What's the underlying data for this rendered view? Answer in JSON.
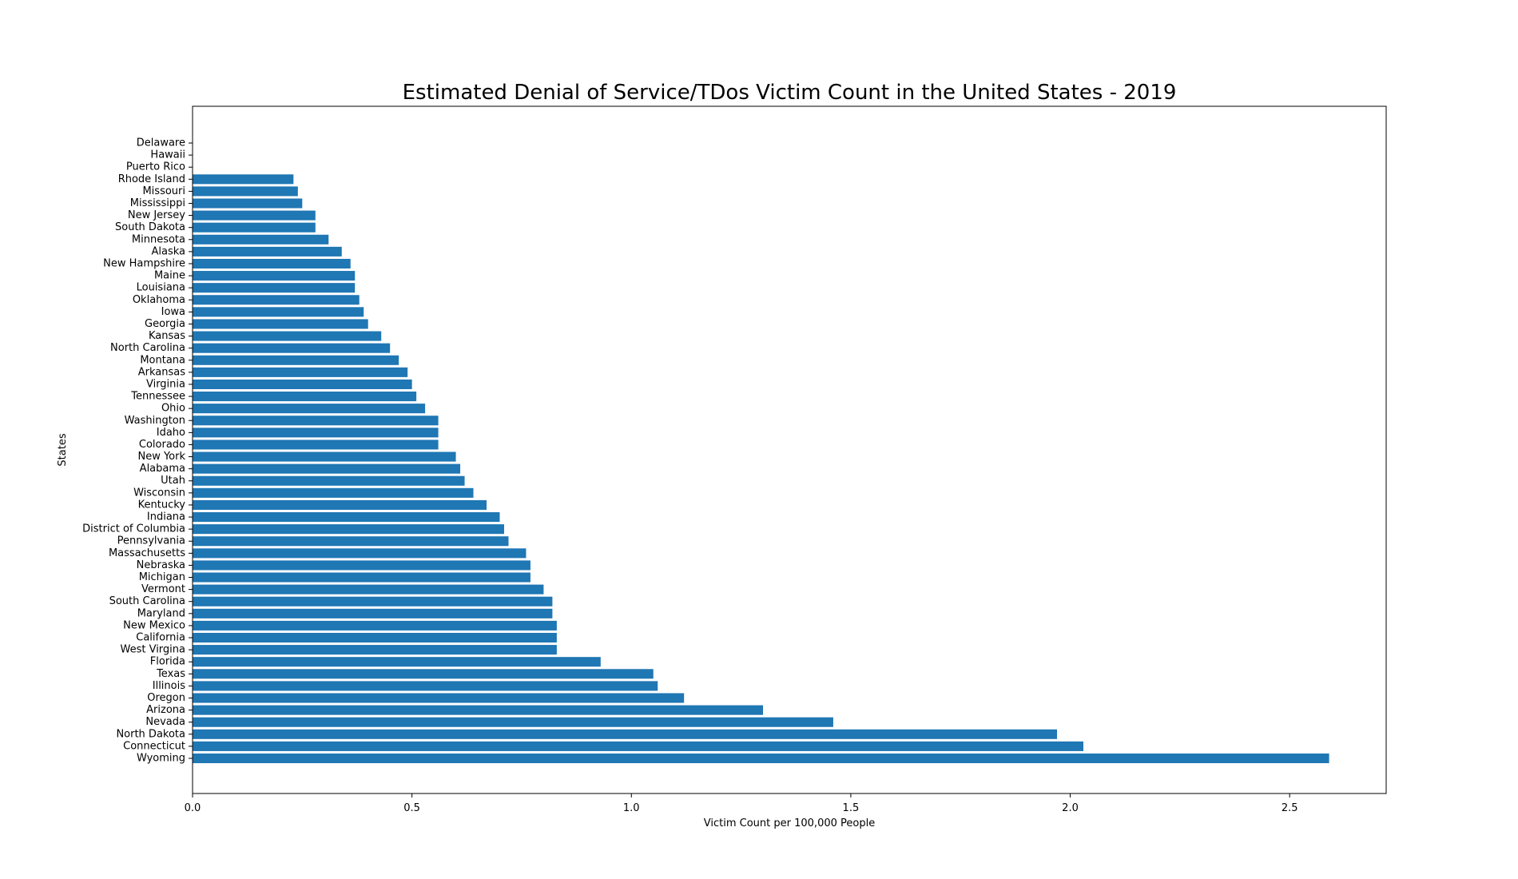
{
  "chart_data": {
    "type": "bar",
    "orientation": "horizontal",
    "title": "Estimated Denial of Service/TDos Victim Count in the United States - 2019",
    "xlabel": "Victim Count per 100,000 People",
    "ylabel": "States",
    "xlim": [
      0,
      2.72
    ],
    "xticks": [
      0.0,
      0.5,
      1.0,
      1.5,
      2.0,
      2.5
    ],
    "xtick_labels": [
      "0.0",
      "0.5",
      "1.0",
      "1.5",
      "2.0",
      "2.5"
    ],
    "grid": false,
    "bar_color": "#1f77b4",
    "categories": [
      "Wyoming",
      "Connecticut",
      "North Dakota",
      "Nevada",
      "Arizona",
      "Oregon",
      "Illinois",
      "Texas",
      "Florida",
      "West Virgina",
      "California",
      "New Mexico",
      "Maryland",
      "South Carolina",
      "Vermont",
      "Michigan",
      "Nebraska",
      "Massachusetts",
      "Pennsylvania",
      "District of Columbia",
      "Indiana",
      "Kentucky",
      "Wisconsin",
      "Utah",
      "Alabama",
      "New York",
      "Colorado",
      "Idaho",
      "Washington",
      "Ohio",
      "Tennessee",
      "Virginia",
      "Arkansas",
      "Montana",
      "North Carolina",
      "Kansas",
      "Georgia",
      "Iowa",
      "Oklahoma",
      "Louisiana",
      "Maine",
      "New Hampshire",
      "Alaska",
      "Minnesota",
      "South Dakota",
      "New Jersey",
      "Mississippi",
      "Missouri",
      "Rhode Island",
      "Puerto Rico",
      "Hawaii",
      "Delaware"
    ],
    "values": [
      2.59,
      2.03,
      1.97,
      1.46,
      1.3,
      1.12,
      1.06,
      1.05,
      0.93,
      0.83,
      0.83,
      0.83,
      0.82,
      0.82,
      0.8,
      0.77,
      0.77,
      0.76,
      0.72,
      0.71,
      0.7,
      0.67,
      0.64,
      0.62,
      0.61,
      0.6,
      0.56,
      0.56,
      0.56,
      0.53,
      0.51,
      0.5,
      0.49,
      0.47,
      0.45,
      0.43,
      0.4,
      0.39,
      0.38,
      0.37,
      0.37,
      0.36,
      0.34,
      0.31,
      0.28,
      0.28,
      0.25,
      0.24,
      0.23,
      0.0,
      0.0,
      0.0
    ]
  }
}
